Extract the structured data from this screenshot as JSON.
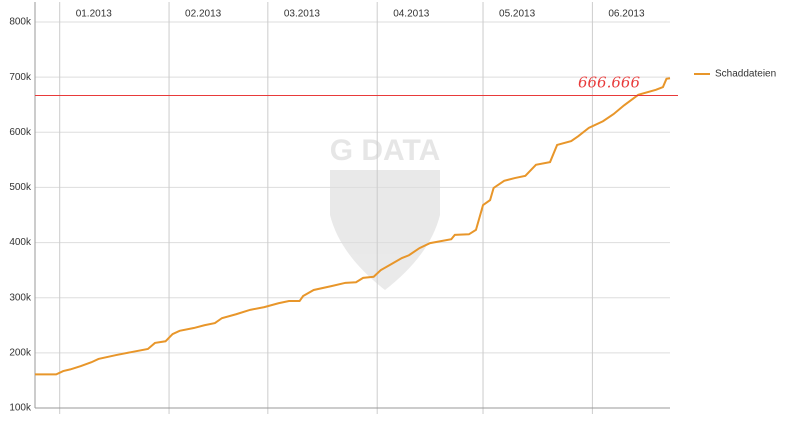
{
  "chart_data": {
    "type": "line",
    "watermark": "G DATA",
    "x": [
      0,
      6,
      8,
      10,
      13,
      16,
      18,
      23,
      27,
      32,
      34,
      37,
      39,
      41,
      45,
      48,
      51,
      53,
      57,
      61,
      65,
      69,
      72,
      75,
      76,
      79,
      84,
      88,
      91,
      93,
      96,
      98,
      101,
      104,
      106,
      109,
      112,
      118,
      119,
      123,
      125,
      127,
      129,
      130,
      133,
      136,
      139,
      142,
      146,
      148,
      152,
      154,
      157,
      161,
      164,
      167,
      171,
      176,
      178,
      179,
      180
    ],
    "series": [
      {
        "name": "Schaddateien",
        "color": "#e8962a",
        "values": [
          161000,
          161000,
          167000,
          170000,
          176000,
          183000,
          189000,
          196000,
          201000,
          207000,
          218000,
          221000,
          234000,
          240000,
          245000,
          250000,
          254000,
          263000,
          270000,
          278000,
          283000,
          290000,
          294000,
          294000,
          303000,
          314000,
          321000,
          327000,
          328000,
          336000,
          338000,
          350000,
          361000,
          372000,
          377000,
          390000,
          399000,
          406000,
          414000,
          415000,
          423000,
          468000,
          477000,
          499000,
          512000,
          517000,
          521000,
          541000,
          546000,
          577000,
          584000,
          593000,
          608000,
          620000,
          633000,
          649000,
          668000,
          677000,
          682000,
          697000,
          698000
        ]
      }
    ],
    "xlim": [
      0,
      180
    ],
    "xticks": [
      {
        "value": 7,
        "label": "01.2013"
      },
      {
        "value": 38,
        "label": "02.2013"
      },
      {
        "value": 66,
        "label": "03.2013"
      },
      {
        "value": 97,
        "label": "04.2013"
      },
      {
        "value": 127,
        "label": "05.2013"
      },
      {
        "value": 158,
        "label": "06.2013"
      }
    ],
    "ylim": [
      100000,
      800000
    ],
    "yticks": [
      {
        "value": 100000,
        "label": "100k"
      },
      {
        "value": 200000,
        "label": "200k"
      },
      {
        "value": 300000,
        "label": "300k"
      },
      {
        "value": 400000,
        "label": "400k"
      },
      {
        "value": 500000,
        "label": "500k"
      },
      {
        "value": 600000,
        "label": "600k"
      },
      {
        "value": 700000,
        "label": "700k"
      },
      {
        "value": 800000,
        "label": "800k"
      }
    ],
    "grid": true,
    "reference_line": {
      "value": 666666,
      "label": "666.666",
      "color": "#e83a3a"
    },
    "legend": "right"
  }
}
